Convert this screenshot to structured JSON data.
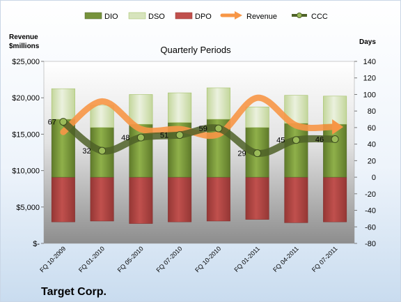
{
  "chart_data": {
    "type": "bar",
    "subtitle": "Quarterly Periods",
    "company": "Target Corp.",
    "y_left_label_line1": "Revenue",
    "y_left_label_line2": "$millions",
    "y_right_label": "Days",
    "categories": [
      "FQ 10-2009",
      "FQ 01-2010",
      "FQ 05-2010",
      "FQ 07-2010",
      "FQ 10-2010",
      "FQ 01-2011",
      "FQ 04-2011",
      "FQ 07-2011"
    ],
    "y_left_ticks": [
      "$-",
      "$5,000",
      "$10,000",
      "$15,000",
      "$20,000",
      "$25,000"
    ],
    "y_left_lim": [
      0,
      25000
    ],
    "y_right_ticks": [
      "-80",
      "-60",
      "-40",
      "-20",
      "0",
      "20",
      "40",
      "60",
      "80",
      "100",
      "120",
      "140"
    ],
    "y_right_lim": [
      -80,
      140
    ],
    "legend": [
      {
        "name": "DIO",
        "color": "#77933c",
        "kind": "bar"
      },
      {
        "name": "DSO",
        "color": "#d7e4bd",
        "kind": "bar"
      },
      {
        "name": "DPO",
        "color": "#c0504d",
        "kind": "bar"
      },
      {
        "name": "Revenue",
        "color": "#f79646",
        "kind": "line"
      },
      {
        "name": "CCC",
        "color": "#4f6228",
        "kind": "line"
      }
    ],
    "series": [
      {
        "name": "DIO",
        "axis": "right",
        "values": [
          70,
          60,
          64,
          66,
          70,
          60,
          65,
          64
        ]
      },
      {
        "name": "DSO",
        "axis": "right",
        "values": [
          37,
          27,
          36,
          36,
          38,
          25,
          34,
          34
        ]
      },
      {
        "name": "DPO",
        "axis": "right",
        "values": [
          -54,
          -53,
          -56,
          -54,
          -53,
          -51,
          -55,
          -54
        ]
      },
      {
        "name": "Revenue",
        "axis": "left",
        "values": [
          15300,
          19500,
          15700,
          15700,
          15000,
          20000,
          16200,
          16000
        ]
      },
      {
        "name": "CCC",
        "axis": "right",
        "values": [
          67,
          32,
          48,
          51,
          59,
          29,
          45,
          46
        ]
      }
    ],
    "ccc_labels": [
      "67",
      "32",
      "48",
      "51",
      "59",
      "29",
      "45",
      "46"
    ]
  }
}
